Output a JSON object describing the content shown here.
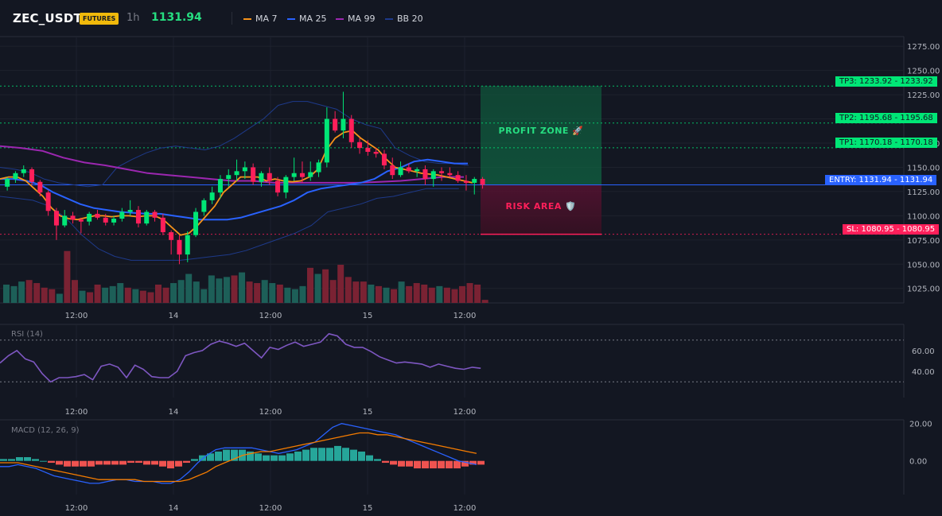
{
  "header": {
    "symbol": "ZEC_USDT",
    "badge": "FUTURES",
    "timeframe": "1h",
    "last_price": "1131.94",
    "legend": [
      {
        "label": "MA 7",
        "color": "#f7931a"
      },
      {
        "label": "MA 25",
        "color": "#2962ff"
      },
      {
        "label": "MA 99",
        "color": "#9c27b0"
      },
      {
        "label": "BB 20",
        "color": "#1e3a8a"
      }
    ]
  },
  "price_axis": {
    "ticks": [
      "1275.00",
      "1250.00",
      "1225.00",
      "1175.00",
      "1150.00",
      "1125.00",
      "1100.00",
      "1075.00",
      "1050.00",
      "1025.00"
    ],
    "range": [
      1010,
      1285
    ]
  },
  "time_axis": {
    "ticks": [
      "12:00",
      "14",
      "12:00",
      "15",
      "12:00"
    ]
  },
  "levels": {
    "tp3": {
      "label": "TP3: 1233.92",
      "value": "1233.92"
    },
    "tp2": {
      "label": "TP2: 1195.68",
      "value": "1195.68"
    },
    "tp1": {
      "label": "TP1: 1170.18",
      "value": "1170.18"
    },
    "entry": {
      "label": "ENTRY: 1131.94",
      "value": "1131.94"
    },
    "sl": {
      "label": "SL: 1080.95",
      "value": "1080.95"
    }
  },
  "zones": {
    "profit": "PROFIT ZONE 🚀",
    "risk": "RISK AREA 🛡️"
  },
  "colors": {
    "up": "#26a69a",
    "up_bright": "#00e676",
    "down": "#ff1f5a",
    "tp": "#00e676",
    "entry": "#2962ff",
    "sl": "#ff1f5a",
    "rsi": "#7e57c2",
    "macd_line": "#2962ff",
    "signal_line": "#f57c00"
  },
  "rsi": {
    "title": "RSI (14)",
    "ticks": [
      "60.00",
      "40.00"
    ],
    "values": [
      48,
      55,
      60,
      52,
      49,
      38,
      30,
      34,
      34,
      35,
      37,
      32,
      45,
      47,
      44,
      34,
      46,
      42,
      35,
      34,
      34,
      40,
      55,
      58,
      60,
      66,
      69,
      67,
      64,
      67,
      60,
      53,
      63,
      61,
      65,
      68,
      64,
      66,
      68,
      76,
      74,
      66,
      63,
      63,
      59,
      54,
      51,
      48,
      49,
      48,
      47,
      44,
      47,
      45,
      43,
      42,
      44,
      43
    ]
  },
  "macd": {
    "title": "MACD (12, 26, 9)",
    "ticks": [
      "20.00",
      "0.00"
    ],
    "histogram": [
      1,
      1,
      2,
      2,
      1,
      0,
      -1,
      -2,
      -3,
      -3,
      -3,
      -3,
      -2,
      -2,
      -2,
      -2,
      -1,
      -1,
      -2,
      -2,
      -3,
      -4,
      -3,
      -1,
      1,
      3,
      4,
      5,
      6,
      6,
      6,
      5,
      4,
      3,
      3,
      3,
      4,
      5,
      6,
      7,
      7,
      7,
      8,
      7,
      6,
      5,
      3,
      1,
      -1,
      -2,
      -3,
      -3,
      -4,
      -4,
      -4,
      -4,
      -4,
      -4,
      -3,
      -2,
      -2
    ],
    "macd_line": [
      -3,
      -3,
      -2,
      -3,
      -4,
      -6,
      -8,
      -9,
      -10,
      -11,
      -12,
      -12,
      -11,
      -10,
      -10,
      -11,
      -11,
      -11,
      -12,
      -12,
      -10,
      -6,
      -1,
      3,
      6,
      7,
      7,
      7,
      7,
      6,
      5,
      4,
      5,
      6,
      8,
      10,
      14,
      18,
      20,
      19,
      18,
      17,
      16,
      15,
      14,
      12,
      10,
      8,
      6,
      4,
      2,
      0,
      -1,
      -2
    ],
    "signal_line": [
      -1,
      -1,
      -1,
      -2,
      -3,
      -4,
      -5,
      -6,
      -7,
      -8,
      -9,
      -10,
      -10,
      -10,
      -10,
      -10,
      -11,
      -11,
      -11,
      -11,
      -11,
      -10,
      -8,
      -6,
      -3,
      -1,
      1,
      3,
      4,
      5,
      5,
      6,
      7,
      8,
      9,
      10,
      11,
      12,
      13,
      14,
      15,
      15,
      14,
      14,
      13,
      12,
      11,
      10,
      9,
      8,
      7,
      6,
      5,
      4
    ]
  },
  "chart_data": {
    "type": "candlestick",
    "title": "ZEC_USDT",
    "candles": [
      {
        "o": 1130,
        "h": 1140,
        "l": 1126,
        "c": 1138
      },
      {
        "o": 1138,
        "h": 1146,
        "l": 1134,
        "c": 1144
      },
      {
        "o": 1144,
        "h": 1152,
        "l": 1140,
        "c": 1148
      },
      {
        "o": 1148,
        "h": 1150,
        "l": 1132,
        "c": 1135
      },
      {
        "o": 1135,
        "h": 1137,
        "l": 1120,
        "c": 1124
      },
      {
        "o": 1124,
        "h": 1126,
        "l": 1100,
        "c": 1105
      },
      {
        "o": 1105,
        "h": 1108,
        "l": 1075,
        "c": 1090
      },
      {
        "o": 1090,
        "h": 1106,
        "l": 1088,
        "c": 1100
      },
      {
        "o": 1100,
        "h": 1104,
        "l": 1092,
        "c": 1096
      },
      {
        "o": 1096,
        "h": 1098,
        "l": 1082,
        "c": 1094
      },
      {
        "o": 1094,
        "h": 1104,
        "l": 1090,
        "c": 1102
      },
      {
        "o": 1102,
        "h": 1106,
        "l": 1096,
        "c": 1098
      },
      {
        "o": 1098,
        "h": 1102,
        "l": 1090,
        "c": 1093
      },
      {
        "o": 1093,
        "h": 1100,
        "l": 1090,
        "c": 1097
      },
      {
        "o": 1097,
        "h": 1108,
        "l": 1094,
        "c": 1104
      },
      {
        "o": 1104,
        "h": 1116,
        "l": 1100,
        "c": 1106
      },
      {
        "o": 1106,
        "h": 1110,
        "l": 1088,
        "c": 1092
      },
      {
        "o": 1092,
        "h": 1106,
        "l": 1090,
        "c": 1104
      },
      {
        "o": 1104,
        "h": 1106,
        "l": 1094,
        "c": 1098
      },
      {
        "o": 1098,
        "h": 1102,
        "l": 1080,
        "c": 1083
      },
      {
        "o": 1083,
        "h": 1085,
        "l": 1060,
        "c": 1075
      },
      {
        "o": 1075,
        "h": 1080,
        "l": 1050,
        "c": 1060
      },
      {
        "o": 1060,
        "h": 1084,
        "l": 1052,
        "c": 1080
      },
      {
        "o": 1080,
        "h": 1108,
        "l": 1078,
        "c": 1104
      },
      {
        "o": 1104,
        "h": 1118,
        "l": 1100,
        "c": 1116
      },
      {
        "o": 1116,
        "h": 1130,
        "l": 1112,
        "c": 1124
      },
      {
        "o": 1124,
        "h": 1142,
        "l": 1118,
        "c": 1138
      },
      {
        "o": 1138,
        "h": 1148,
        "l": 1130,
        "c": 1142
      },
      {
        "o": 1142,
        "h": 1158,
        "l": 1136,
        "c": 1146
      },
      {
        "o": 1146,
        "h": 1156,
        "l": 1138,
        "c": 1150
      },
      {
        "o": 1150,
        "h": 1154,
        "l": 1132,
        "c": 1135
      },
      {
        "o": 1135,
        "h": 1146,
        "l": 1130,
        "c": 1144
      },
      {
        "o": 1144,
        "h": 1150,
        "l": 1132,
        "c": 1136
      },
      {
        "o": 1136,
        "h": 1140,
        "l": 1120,
        "c": 1124
      },
      {
        "o": 1124,
        "h": 1142,
        "l": 1118,
        "c": 1140
      },
      {
        "o": 1140,
        "h": 1160,
        "l": 1136,
        "c": 1144
      },
      {
        "o": 1144,
        "h": 1156,
        "l": 1134,
        "c": 1140
      },
      {
        "o": 1140,
        "h": 1156,
        "l": 1136,
        "c": 1145
      },
      {
        "o": 1145,
        "h": 1158,
        "l": 1140,
        "c": 1155
      },
      {
        "o": 1155,
        "h": 1212,
        "l": 1150,
        "c": 1200
      },
      {
        "o": 1200,
        "h": 1208,
        "l": 1186,
        "c": 1188
      },
      {
        "o": 1188,
        "h": 1228,
        "l": 1180,
        "c": 1200
      },
      {
        "o": 1200,
        "h": 1204,
        "l": 1170,
        "c": 1176
      },
      {
        "o": 1176,
        "h": 1180,
        "l": 1164,
        "c": 1170
      },
      {
        "o": 1170,
        "h": 1178,
        "l": 1162,
        "c": 1166
      },
      {
        "o": 1166,
        "h": 1170,
        "l": 1160,
        "c": 1164
      },
      {
        "o": 1164,
        "h": 1168,
        "l": 1148,
        "c": 1152
      },
      {
        "o": 1152,
        "h": 1160,
        "l": 1138,
        "c": 1142
      },
      {
        "o": 1142,
        "h": 1156,
        "l": 1140,
        "c": 1150
      },
      {
        "o": 1150,
        "h": 1154,
        "l": 1144,
        "c": 1146
      },
      {
        "o": 1146,
        "h": 1150,
        "l": 1140,
        "c": 1148
      },
      {
        "o": 1148,
        "h": 1152,
        "l": 1132,
        "c": 1138
      },
      {
        "o": 1138,
        "h": 1148,
        "l": 1130,
        "c": 1146
      },
      {
        "o": 1146,
        "h": 1150,
        "l": 1136,
        "c": 1144
      },
      {
        "o": 1144,
        "h": 1150,
        "l": 1140,
        "c": 1142
      },
      {
        "o": 1142,
        "h": 1146,
        "l": 1134,
        "c": 1136
      },
      {
        "o": 1136,
        "h": 1142,
        "l": 1126,
        "c": 1134
      },
      {
        "o": 1134,
        "h": 1140,
        "l": 1122,
        "c": 1138
      },
      {
        "o": 1138,
        "h": 1140,
        "l": 1128,
        "c": 1132
      }
    ],
    "ma7": [
      1138,
      1140,
      1140,
      1136,
      1128,
      1120,
      1108,
      1100,
      1097,
      1096,
      1098,
      1100,
      1100,
      1099,
      1100,
      1100,
      1099,
      1100,
      1100,
      1096,
      1088,
      1080,
      1082,
      1090,
      1100,
      1110,
      1124,
      1132,
      1140,
      1140,
      1140,
      1136,
      1138,
      1136,
      1135,
      1136,
      1140,
      1148,
      1168,
      1180,
      1186,
      1188,
      1180,
      1174,
      1168,
      1158,
      1150,
      1148,
      1146,
      1144,
      1143,
      1142,
      1140,
      1138,
      1136,
      1134
    ],
    "ma25": [
      1138,
      1138,
      1136,
      1132,
      1124,
      1118,
      1112,
      1108,
      1106,
      1104,
      1103,
      1102,
      1102,
      1100,
      1098,
      1096,
      1096,
      1096,
      1098,
      1102,
      1106,
      1110,
      1116,
      1124,
      1128,
      1130,
      1132,
      1134,
      1138,
      1146,
      1150,
      1156,
      1158,
      1156,
      1154,
      1154
    ],
    "ma99": [
      1172,
      1170,
      1167,
      1160,
      1155,
      1152,
      1148,
      1144,
      1142,
      1140,
      1138,
      1136,
      1136,
      1134,
      1134,
      1134,
      1134,
      1134,
      1135,
      1136,
      1138,
      1140,
      1140
    ],
    "bb_upper": [
      1150,
      1148,
      1145,
      1138,
      1134,
      1132,
      1130,
      1132,
      1150,
      1158,
      1165,
      1170,
      1172,
      1170,
      1168,
      1172,
      1180,
      1190,
      1200,
      1214,
      1218,
      1218,
      1214,
      1210,
      1200,
      1194,
      1190,
      1170,
      1162,
      1156,
      1154,
      1154,
      1152
    ],
    "bb_lower": [
      1120,
      1118,
      1116,
      1110,
      1098,
      1080,
      1066,
      1058,
      1054,
      1054,
      1054,
      1054,
      1056,
      1058,
      1060,
      1064,
      1070,
      1076,
      1082,
      1090,
      1104,
      1108,
      1112,
      1118,
      1120,
      1124,
      1128,
      1128,
      1128
    ],
    "volume": [
      24,
      22,
      28,
      30,
      26,
      20,
      18,
      12,
      68,
      30,
      16,
      14,
      24,
      20,
      22,
      26,
      20,
      18,
      16,
      14,
      24,
      20,
      26,
      30,
      38,
      28,
      18,
      36,
      32,
      34,
      36,
      40,
      28,
      26,
      30,
      26,
      24,
      20,
      18,
      22,
      46,
      38,
      44,
      30,
      50,
      34,
      28,
      28,
      24,
      22,
      20,
      18,
      28,
      22,
      26,
      24,
      20,
      22,
      20,
      18,
      22,
      26,
      24,
      4
    ]
  }
}
